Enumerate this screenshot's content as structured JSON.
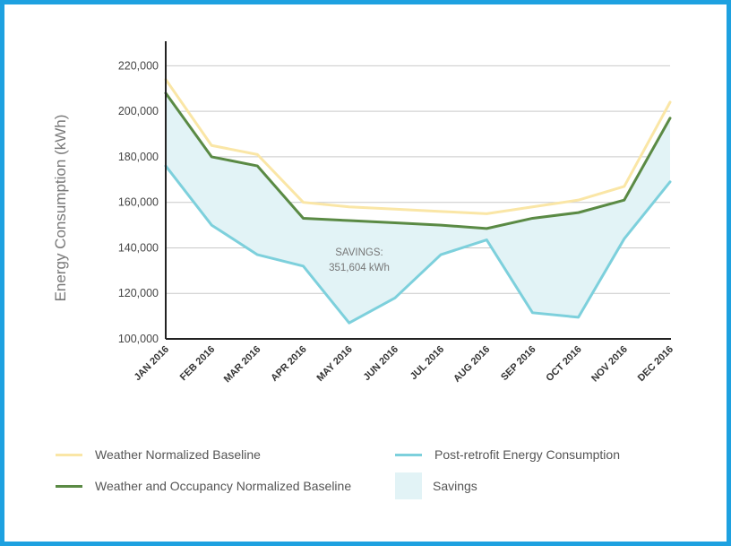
{
  "chart_data": {
    "type": "line",
    "title": "",
    "xlabel": "",
    "ylabel": "Energy Consumption (kWh)",
    "ylim": [
      100000,
      230000
    ],
    "yticks": [
      100000,
      120000,
      140000,
      160000,
      180000,
      200000,
      220000
    ],
    "ytick_labels": [
      "100,000",
      "120,000",
      "140,000",
      "160,000",
      "180,000",
      "200,000",
      "220,000"
    ],
    "categories": [
      "JAN 2016",
      "FEB 2016",
      "MAR 2016",
      "APR 2016",
      "MAY 2016",
      "JUN 2016",
      "JUL 2016",
      "AUG 2016",
      "SEP 2016",
      "OCT 2016",
      "NOV 2016",
      "DEC 2016"
    ],
    "series": [
      {
        "name": "Weather Normalized Baseline",
        "color": "#fae6a6",
        "values": [
          214000,
          185000,
          181000,
          160000,
          158000,
          157000,
          156000,
          155000,
          158000,
          161000,
          167000,
          204000
        ]
      },
      {
        "name": "Weather and Occupancy Normalized Baseline",
        "color": "#5a8a44",
        "values": [
          208000,
          180000,
          176000,
          153000,
          152000,
          151000,
          150000,
          148500,
          153000,
          155500,
          161000,
          197000
        ]
      },
      {
        "name": "Post-retrofit Energy Consumption",
        "color": "#7dd0dc",
        "values": [
          176000,
          150000,
          137000,
          132000,
          107000,
          118000,
          137000,
          143500,
          111500,
          109500,
          144000,
          169000
        ]
      }
    ],
    "savings_fill": {
      "name": "Savings",
      "color": "#e2f3f6",
      "between": [
        "Weather and Occupancy Normalized Baseline",
        "Post-retrofit Energy Consumption"
      ]
    },
    "annotation": {
      "line1": "SAVINGS:",
      "line2": "351,604 kWh"
    },
    "legend": [
      {
        "label": "Weather Normalized Baseline",
        "kind": "line",
        "color": "#fae6a6"
      },
      {
        "label": "Weather and Occupancy Normalized Baseline",
        "kind": "line",
        "color": "#5a8a44"
      },
      {
        "label": "Post-retrofit Energy Consumption",
        "kind": "line",
        "color": "#7dd0dc"
      },
      {
        "label": "Savings",
        "kind": "box",
        "color": "#e2f3f6"
      }
    ]
  }
}
